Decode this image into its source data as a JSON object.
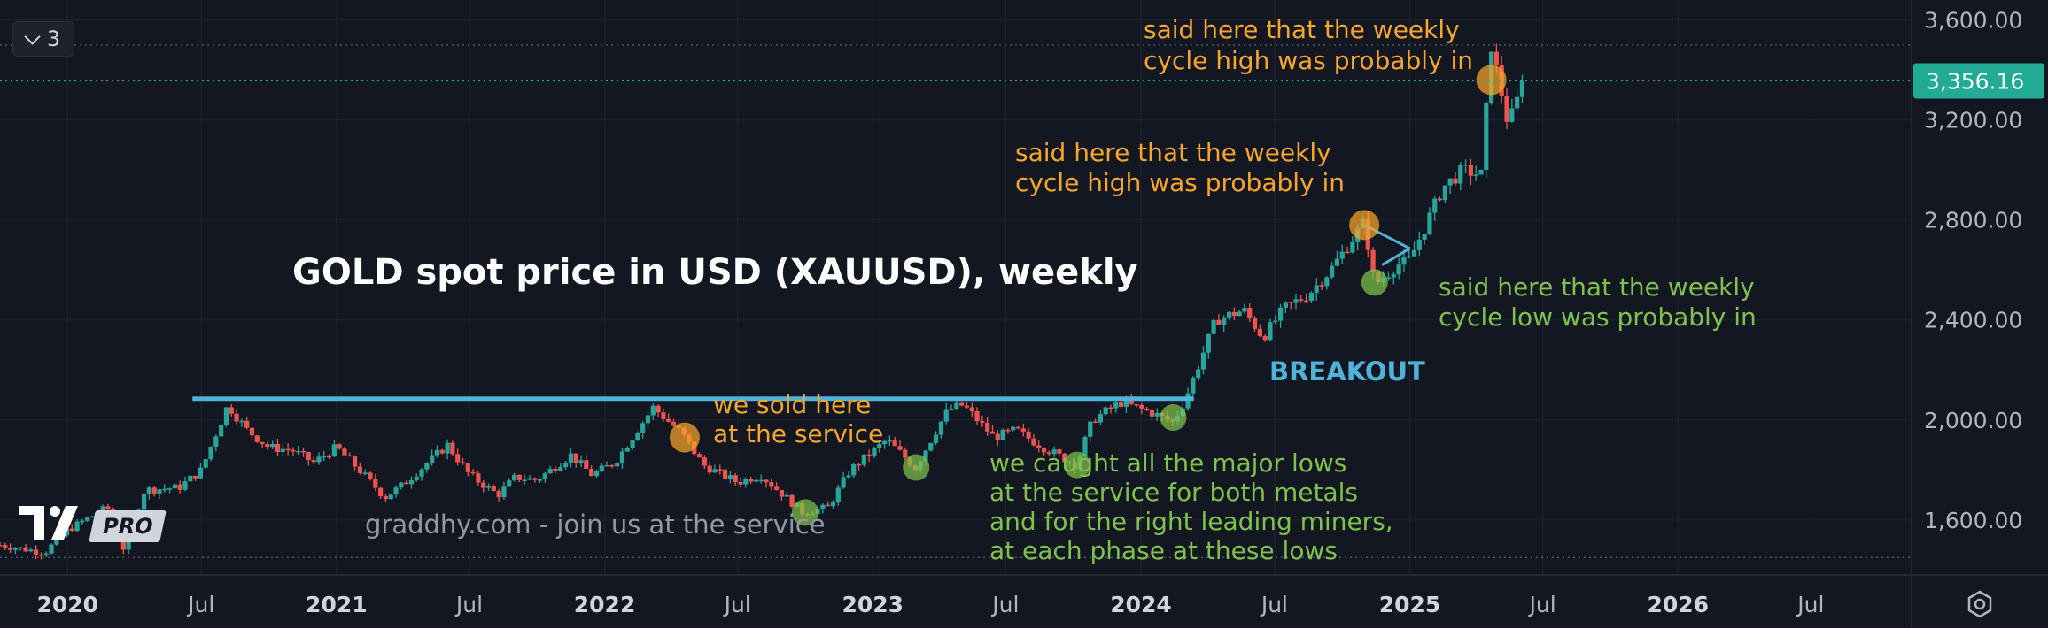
{
  "window": {
    "interval_button": "3",
    "brand": "PRO",
    "icons": {
      "interval": "chevron-down-icon",
      "logo": "tradingview-logo-icon",
      "settings": "chart-settings-icon"
    }
  },
  "colors": {
    "background": "#131722",
    "up": "#26a69a",
    "down": "#ef5350",
    "resistance": "#4fb3d9",
    "orange_note": "#f7a62a",
    "green_note": "#7fc24b",
    "axis_text": "#b2b5be",
    "price_label_bg": "#22ab94"
  },
  "chart_data": {
    "type": "candlestick",
    "title": "GOLD spot price in USD (XAUUSD), weekly",
    "timeframe": "weekly",
    "xlabel": "",
    "ylabel": "",
    "x_range": [
      "2019-10-01",
      "2026-11-15"
    ],
    "ylim": [
      1380,
      3680
    ],
    "y_ticks": [
      1600,
      2000,
      2400,
      2800,
      3200,
      3600
    ],
    "y_tick_labels": [
      "1,600.00",
      "2,000.00",
      "2,400.00",
      "2,800.00",
      "3,200.00",
      "3,600.00"
    ],
    "x_ticks": [
      {
        "date": "2020-01-01",
        "label": "2020",
        "bold": true
      },
      {
        "date": "2020-07-01",
        "label": "Jul",
        "bold": false
      },
      {
        "date": "2021-01-01",
        "label": "2021",
        "bold": true
      },
      {
        "date": "2021-07-01",
        "label": "Jul",
        "bold": false
      },
      {
        "date": "2022-01-01",
        "label": "2022",
        "bold": true
      },
      {
        "date": "2022-07-01",
        "label": "Jul",
        "bold": false
      },
      {
        "date": "2023-01-01",
        "label": "2023",
        "bold": true
      },
      {
        "date": "2023-07-01",
        "label": "Jul",
        "bold": false
      },
      {
        "date": "2024-01-01",
        "label": "2024",
        "bold": true
      },
      {
        "date": "2024-07-01",
        "label": "Jul",
        "bold": false
      },
      {
        "date": "2025-01-01",
        "label": "2025",
        "bold": true
      },
      {
        "date": "2025-07-01",
        "label": "Jul",
        "bold": false
      },
      {
        "date": "2026-01-01",
        "label": "2026",
        "bold": true
      },
      {
        "date": "2026-07-01",
        "label": "Jul",
        "bold": false
      }
    ],
    "last_price": 3356.16,
    "last_price_label": "3,356.16",
    "high_line": 3500,
    "low_line": 1450,
    "price_path": [
      [
        "2019-10-01",
        1500
      ],
      [
        "2019-12-01",
        1470
      ],
      [
        "2020-01-01",
        1560
      ],
      [
        "2020-02-24",
        1650
      ],
      [
        "2020-03-16",
        1480
      ],
      [
        "2020-04-15",
        1720
      ],
      [
        "2020-06-01",
        1730
      ],
      [
        "2020-07-01",
        1800
      ],
      [
        "2020-08-06",
        2060
      ],
      [
        "2020-09-01",
        1960
      ],
      [
        "2020-10-01",
        1890
      ],
      [
        "2020-11-01",
        1880
      ],
      [
        "2020-12-01",
        1830
      ],
      [
        "2021-01-01",
        1890
      ],
      [
        "2021-02-01",
        1800
      ],
      [
        "2021-03-08",
        1690
      ],
      [
        "2021-04-01",
        1740
      ],
      [
        "2021-06-01",
        1900
      ],
      [
        "2021-07-01",
        1780
      ],
      [
        "2021-08-09",
        1700
      ],
      [
        "2021-09-01",
        1770
      ],
      [
        "2021-10-01",
        1760
      ],
      [
        "2021-11-16",
        1860
      ],
      [
        "2021-12-15",
        1780
      ],
      [
        "2022-01-15",
        1830
      ],
      [
        "2022-03-08",
        2050
      ],
      [
        "2022-04-15",
        1950
      ],
      [
        "2022-05-15",
        1820
      ],
      [
        "2022-07-01",
        1750
      ],
      [
        "2022-08-01",
        1780
      ],
      [
        "2022-09-01",
        1700
      ],
      [
        "2022-09-28",
        1630
      ],
      [
        "2022-11-01",
        1650
      ],
      [
        "2022-12-01",
        1800
      ],
      [
        "2023-01-20",
        1920
      ],
      [
        "2023-02-28",
        1810
      ],
      [
        "2023-04-13",
        2040
      ],
      [
        "2023-05-04",
        2060
      ],
      [
        "2023-06-15",
        1930
      ],
      [
        "2023-07-15",
        1960
      ],
      [
        "2023-08-15",
        1900
      ],
      [
        "2023-10-05",
        1820
      ],
      [
        "2023-10-27",
        2000
      ],
      [
        "2023-12-04",
        2070
      ],
      [
        "2024-01-15",
        2030
      ],
      [
        "2024-02-14",
        1990
      ],
      [
        "2024-03-01",
        2080
      ],
      [
        "2024-04-12",
        2400
      ],
      [
        "2024-05-20",
        2440
      ],
      [
        "2024-06-15",
        2330
      ],
      [
        "2024-07-15",
        2450
      ],
      [
        "2024-08-15",
        2500
      ],
      [
        "2024-09-15",
        2600
      ],
      [
        "2024-10-31",
        2790
      ],
      [
        "2024-11-14",
        2540
      ],
      [
        "2024-12-15",
        2620
      ],
      [
        "2025-01-01",
        2640
      ],
      [
        "2025-02-15",
        2930
      ],
      [
        "2025-03-15",
        3000
      ],
      [
        "2025-04-08",
        2980
      ],
      [
        "2025-04-22",
        3500
      ],
      [
        "2025-05-15",
        3180
      ],
      [
        "2025-06-06",
        3356
      ]
    ]
  },
  "annotations": {
    "resistance_line": {
      "from": "2020-07-01",
      "to": "2024-03-01",
      "value": 2085
    },
    "breakout_label": "BREAKOUT",
    "triangle": {
      "from": "2024-10-31",
      "apex": "2025-01-01",
      "top": 2780,
      "bottom": 2620
    },
    "markers": [
      {
        "date": "2022-04-20",
        "value": 1930,
        "kind": "orange"
      },
      {
        "date": "2022-10-01",
        "value": 1630,
        "kind": "green"
      },
      {
        "date": "2023-03-01",
        "value": 1810,
        "kind": "green"
      },
      {
        "date": "2023-10-06",
        "value": 1820,
        "kind": "green"
      },
      {
        "date": "2024-02-14",
        "value": 2010,
        "kind": "green"
      },
      {
        "date": "2024-10-31",
        "value": 2780,
        "kind": "orange"
      },
      {
        "date": "2024-11-14",
        "value": 2550,
        "kind": "green"
      },
      {
        "date": "2025-04-22",
        "value": 3360,
        "kind": "orange"
      }
    ],
    "texts": {
      "sold_here": [
        "we sold here",
        "at the service"
      ],
      "weekly_high_1": [
        "said here that the weekly",
        "cycle high was probably in"
      ],
      "weekly_high_2": [
        "said here that the weekly",
        "cycle high was probably in"
      ],
      "weekly_low": [
        "said here that the weekly",
        "cycle low was probably in"
      ],
      "major_lows": [
        "we caught all the major lows",
        "at the service for both metals",
        "and for the right leading miners,",
        "at each phase at these lows"
      ],
      "watermark": "graddhy.com - join us at the service"
    }
  }
}
